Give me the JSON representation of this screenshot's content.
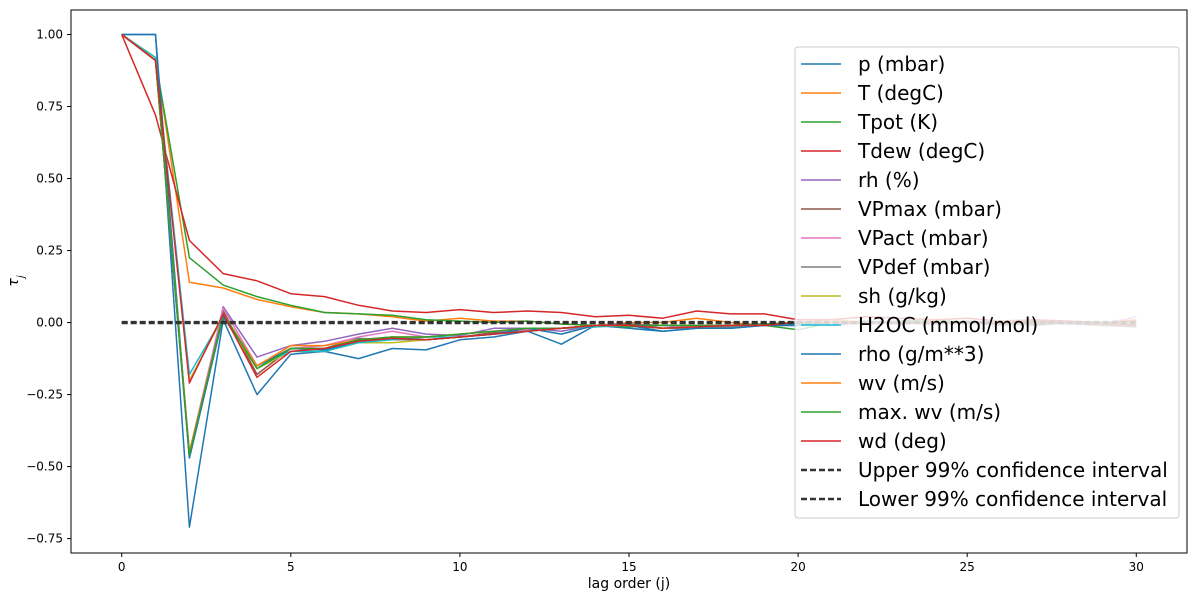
{
  "chart_data": {
    "type": "line",
    "xlabel": "lag order (j)",
    "ylabel": "τ_j",
    "xlim": [
      -1.5,
      31.5
    ],
    "ylim": [
      -0.8,
      1.085
    ],
    "xticks": [
      0,
      5,
      10,
      15,
      20,
      25,
      30
    ],
    "yticks": [
      -0.75,
      -0.5,
      -0.25,
      0.0,
      0.25,
      0.5,
      0.75,
      1.0
    ],
    "xtick_labels": [
      "0",
      "5",
      "10",
      "15",
      "20",
      "25",
      "30"
    ],
    "ytick_labels": [
      "−0.75",
      "−0.50",
      "−0.25",
      "0.00",
      "0.25",
      "0.50",
      "0.75",
      "1.00"
    ],
    "grid": false,
    "legend_position": "right",
    "x": [
      0,
      1,
      2,
      3,
      4,
      5,
      6,
      7,
      8,
      9,
      10,
      11,
      12,
      13,
      14,
      15,
      16,
      17,
      18,
      19,
      20,
      21,
      22,
      23,
      24,
      25,
      26,
      27,
      28,
      29,
      30
    ],
    "series": [
      {
        "name": "p (mbar)",
        "color": "#1f77b4",
        "dashed": false,
        "values": [
          1.0,
          1.0,
          -0.71,
          0.01,
          -0.25,
          -0.11,
          -0.1,
          -0.125,
          -0.09,
          -0.095,
          -0.06,
          -0.05,
          -0.03,
          -0.075,
          -0.01,
          -0.02,
          -0.03,
          -0.02,
          -0.02,
          -0.01,
          -0.01,
          0.0,
          0.005,
          0.0,
          -0.005,
          0.005,
          -0.01,
          0.0,
          0.0,
          -0.005,
          -0.01
        ]
      },
      {
        "name": "T (degC)",
        "color": "#ff7f0e",
        "dashed": false,
        "values": [
          1.0,
          0.92,
          0.14,
          0.12,
          0.08,
          0.055,
          0.035,
          0.03,
          0.02,
          0.005,
          0.015,
          0.005,
          0.005,
          -0.005,
          -0.01,
          0.0,
          0.0,
          0.015,
          0.0,
          -0.01,
          0.0,
          0.01,
          0.0,
          0.0,
          0.005,
          0.0,
          0.005,
          0.0,
          0.005,
          0.0,
          0.01
        ]
      },
      {
        "name": "Tpot (K)",
        "color": "#2ca02c",
        "dashed": false,
        "values": [
          1.0,
          0.91,
          0.225,
          0.13,
          0.09,
          0.06,
          0.035,
          0.03,
          0.025,
          0.01,
          0.005,
          0.0,
          0.005,
          -0.005,
          -0.01,
          -0.015,
          -0.01,
          -0.01,
          -0.015,
          -0.01,
          -0.025,
          0.0,
          0.0,
          0.005,
          0.01,
          0.0,
          0.005,
          0.005,
          0.0,
          0.0,
          -0.005
        ]
      },
      {
        "name": "Tdew (degC)",
        "color": "#d62728",
        "dashed": false,
        "values": [
          1.0,
          0.72,
          0.285,
          0.17,
          0.145,
          0.1,
          0.09,
          0.06,
          0.04,
          0.035,
          0.045,
          0.035,
          0.04,
          0.035,
          0.02,
          0.025,
          0.015,
          0.04,
          0.03,
          0.03,
          0.01,
          0.01,
          0.02,
          0.015,
          0.01,
          0.015,
          0.005,
          0.01,
          0.005,
          0.0,
          0.005
        ]
      },
      {
        "name": "rh (%)",
        "color": "#9467bd",
        "dashed": false,
        "values": [
          1.0,
          0.91,
          -0.47,
          0.055,
          -0.12,
          -0.08,
          -0.065,
          -0.04,
          -0.02,
          -0.04,
          -0.045,
          -0.02,
          -0.02,
          -0.03,
          -0.01,
          -0.005,
          -0.01,
          -0.02,
          -0.01,
          -0.01,
          0.0,
          -0.01,
          0.0,
          -0.005,
          0.0,
          0.0,
          -0.01,
          0.0,
          -0.005,
          -0.01,
          -0.01
        ]
      },
      {
        "name": "VPmax (mbar)",
        "color": "#8c564b",
        "dashed": false,
        "values": [
          1.0,
          0.91,
          -0.46,
          0.04,
          -0.18,
          -0.09,
          -0.09,
          -0.06,
          -0.05,
          -0.06,
          -0.05,
          -0.035,
          -0.03,
          -0.02,
          -0.015,
          -0.005,
          -0.02,
          -0.015,
          -0.01,
          -0.01,
          -0.005,
          0.0,
          -0.005,
          0.0,
          -0.005,
          0.0,
          0.0,
          -0.01,
          0.0,
          -0.01,
          -0.01
        ]
      },
      {
        "name": "VPact (mbar)",
        "color": "#e377c2",
        "dashed": false,
        "values": [
          1.0,
          0.91,
          -0.45,
          0.05,
          -0.15,
          -0.09,
          -0.08,
          -0.05,
          -0.03,
          -0.05,
          -0.04,
          -0.03,
          -0.025,
          -0.02,
          -0.01,
          -0.01,
          -0.02,
          -0.01,
          -0.01,
          -0.005,
          0.0,
          0.0,
          -0.005,
          0.0,
          0.0,
          0.0,
          -0.005,
          0.0,
          0.0,
          -0.005,
          0.02
        ]
      },
      {
        "name": "VPdef (mbar)",
        "color": "#7f7f7f",
        "dashed": false,
        "values": [
          1.0,
          0.91,
          -0.47,
          0.03,
          -0.16,
          -0.09,
          -0.09,
          -0.055,
          -0.06,
          -0.06,
          -0.05,
          -0.04,
          -0.03,
          -0.02,
          -0.01,
          -0.01,
          -0.02,
          -0.02,
          -0.015,
          -0.01,
          -0.01,
          0.0,
          -0.005,
          0.0,
          0.0,
          0.0,
          -0.01,
          -0.005,
          0.0,
          -0.01,
          -0.015
        ]
      },
      {
        "name": "sh (g/kg)",
        "color": "#bcbd22",
        "dashed": false,
        "values": [
          1.0,
          0.92,
          -0.2,
          0.02,
          -0.16,
          -0.1,
          -0.1,
          -0.07,
          -0.07,
          -0.06,
          -0.05,
          -0.04,
          -0.03,
          -0.02,
          -0.015,
          -0.01,
          -0.02,
          -0.015,
          -0.01,
          -0.01,
          -0.005,
          0.0,
          0.0,
          0.0,
          0.0,
          0.0,
          -0.005,
          0.0,
          0.0,
          -0.005,
          -0.01
        ]
      },
      {
        "name": "H2OC (mmol/mol)",
        "color": "#17becf",
        "dashed": false,
        "values": [
          1.0,
          0.92,
          -0.18,
          0.02,
          -0.15,
          -0.1,
          -0.1,
          -0.07,
          -0.06,
          -0.05,
          -0.05,
          -0.04,
          -0.03,
          -0.02,
          -0.015,
          -0.01,
          -0.02,
          -0.015,
          -0.01,
          -0.01,
          -0.005,
          0.0,
          0.0,
          0.0,
          0.0,
          0.0,
          -0.005,
          0.0,
          0.0,
          -0.005,
          -0.01
        ]
      },
      {
        "name": "rho (g/m**3)",
        "color": "#1f77b4",
        "dashed": false,
        "values": [
          1.0,
          1.0,
          -0.47,
          0.02,
          -0.15,
          -0.09,
          -0.095,
          -0.065,
          -0.055,
          -0.06,
          -0.05,
          -0.04,
          -0.02,
          -0.04,
          -0.01,
          -0.01,
          -0.03,
          -0.02,
          -0.02,
          -0.01,
          -0.01,
          0.0,
          0.0,
          0.0,
          0.0,
          0.0,
          -0.005,
          0.0,
          0.0,
          -0.005,
          -0.01
        ]
      },
      {
        "name": "wv (m/s)",
        "color": "#ff7f0e",
        "dashed": false,
        "values": [
          1.0,
          0.91,
          -0.45,
          0.03,
          -0.15,
          -0.08,
          -0.08,
          -0.06,
          -0.05,
          -0.05,
          -0.04,
          -0.03,
          -0.02,
          -0.02,
          -0.01,
          -0.01,
          -0.01,
          -0.01,
          -0.01,
          -0.005,
          0.0,
          0.0,
          0.0,
          0.0,
          0.0,
          0.0,
          0.0,
          0.0,
          0.0,
          0.0,
          -0.005
        ]
      },
      {
        "name": "max. wv (m/s)",
        "color": "#2ca02c",
        "dashed": false,
        "values": [
          1.0,
          0.91,
          -0.46,
          0.03,
          -0.16,
          -0.09,
          -0.09,
          -0.06,
          -0.05,
          -0.05,
          -0.04,
          -0.03,
          -0.02,
          -0.02,
          -0.01,
          -0.01,
          -0.01,
          -0.01,
          -0.01,
          -0.005,
          0.0,
          0.0,
          0.0,
          0.0,
          0.0,
          0.0,
          0.0,
          0.0,
          0.0,
          0.0,
          -0.005
        ]
      },
      {
        "name": "wd (deg)",
        "color": "#d62728",
        "dashed": false,
        "values": [
          1.0,
          0.91,
          -0.21,
          0.03,
          -0.19,
          -0.1,
          -0.09,
          -0.065,
          -0.055,
          -0.06,
          -0.05,
          -0.04,
          -0.03,
          -0.02,
          -0.01,
          -0.01,
          -0.02,
          -0.015,
          -0.01,
          -0.01,
          0.0,
          0.0,
          0.0,
          0.0,
          0.0,
          0.0,
          -0.005,
          0.0,
          0.0,
          -0.005,
          -0.01
        ]
      },
      {
        "name": "Upper 99% confidence interval",
        "color": "#333333",
        "dashed": true,
        "values": [
          0.0015,
          0.0015,
          0.0015,
          0.0015,
          0.0015,
          0.0015,
          0.0015,
          0.0015,
          0.0015,
          0.0015,
          0.0015,
          0.0015,
          0.0015,
          0.0015,
          0.0015,
          0.0015,
          0.0015,
          0.0015,
          0.0015,
          0.0015,
          0.0015,
          0.0015,
          0.0015,
          0.0015,
          0.0015,
          0.0015,
          0.0015,
          0.0015,
          0.0015,
          0.0015,
          0.0015
        ]
      },
      {
        "name": "Lower 99% confidence interval",
        "color": "#333333",
        "dashed": true,
        "values": [
          -0.0015,
          -0.0015,
          -0.0015,
          -0.0015,
          -0.0015,
          -0.0015,
          -0.0015,
          -0.0015,
          -0.0015,
          -0.0015,
          -0.0015,
          -0.0015,
          -0.0015,
          -0.0015,
          -0.0015,
          -0.0015,
          -0.0015,
          -0.0015,
          -0.0015,
          -0.0015,
          -0.0015,
          -0.0015,
          -0.0015,
          -0.0015,
          -0.0015,
          -0.0015,
          -0.0015,
          -0.0015,
          -0.0015,
          -0.0015,
          -0.0015
        ]
      }
    ]
  }
}
